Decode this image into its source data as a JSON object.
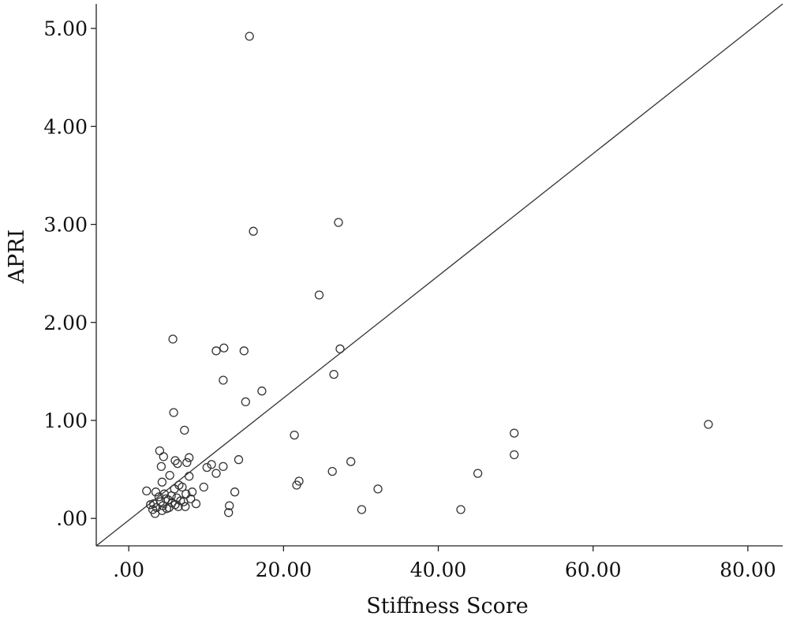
{
  "chart_data": {
    "type": "scatter",
    "xlabel": "Stiffness Score",
    "ylabel": "APRI",
    "xlim": [
      -4.2,
      84.5
    ],
    "ylim": [
      -0.28,
      5.25
    ],
    "x_ticks": [
      0,
      20,
      40,
      60,
      80
    ],
    "x_tick_labels": [
      ".00",
      "20.00",
      "40.00",
      "60.00",
      "80.00"
    ],
    "y_ticks": [
      0,
      1,
      2,
      3,
      4,
      5
    ],
    "y_tick_labels": [
      ".00",
      "1.00",
      "2.00",
      "3.00",
      "4.00",
      "5.00"
    ],
    "grid": false,
    "legend": "none",
    "reference_line": {
      "from": [
        -4.2,
        -0.28
      ],
      "to": [
        84.5,
        5.25
      ]
    },
    "points": [
      [
        15.6,
        4.92
      ],
      [
        27.1,
        3.02
      ],
      [
        16.1,
        2.93
      ],
      [
        24.6,
        2.28
      ],
      [
        5.7,
        1.83
      ],
      [
        11.3,
        1.71
      ],
      [
        12.3,
        1.74
      ],
      [
        14.9,
        1.71
      ],
      [
        27.3,
        1.73
      ],
      [
        26.5,
        1.47
      ],
      [
        12.2,
        1.41
      ],
      [
        17.2,
        1.3
      ],
      [
        15.1,
        1.19
      ],
      [
        5.8,
        1.08
      ],
      [
        7.2,
        0.9
      ],
      [
        21.4,
        0.85
      ],
      [
        49.8,
        0.87
      ],
      [
        74.9,
        0.96
      ],
      [
        49.8,
        0.65
      ],
      [
        4.0,
        0.69
      ],
      [
        4.5,
        0.63
      ],
      [
        7.8,
        0.62
      ],
      [
        6.0,
        0.59
      ],
      [
        7.5,
        0.57
      ],
      [
        6.3,
        0.56
      ],
      [
        4.2,
        0.53
      ],
      [
        10.1,
        0.52
      ],
      [
        10.7,
        0.55
      ],
      [
        12.2,
        0.53
      ],
      [
        14.2,
        0.6
      ],
      [
        28.7,
        0.58
      ],
      [
        11.3,
        0.46
      ],
      [
        26.3,
        0.48
      ],
      [
        45.1,
        0.46
      ],
      [
        5.3,
        0.44
      ],
      [
        7.8,
        0.43
      ],
      [
        4.3,
        0.37
      ],
      [
        21.7,
        0.34
      ],
      [
        22.0,
        0.38
      ],
      [
        9.7,
        0.32
      ],
      [
        32.2,
        0.3
      ],
      [
        2.3,
        0.28
      ],
      [
        13.7,
        0.27
      ],
      [
        3.5,
        0.27
      ],
      [
        5.9,
        0.3
      ],
      [
        6.5,
        0.34
      ],
      [
        8.2,
        0.27
      ],
      [
        6.9,
        0.32
      ],
      [
        4.6,
        0.25
      ],
      [
        5.5,
        0.23
      ],
      [
        7.4,
        0.25
      ],
      [
        3.9,
        0.22
      ],
      [
        4.8,
        0.2
      ],
      [
        6.2,
        0.21
      ],
      [
        8.0,
        0.2
      ],
      [
        5.1,
        0.19
      ],
      [
        6.7,
        0.18
      ],
      [
        4.1,
        0.17
      ],
      [
        5.6,
        0.16
      ],
      [
        7.1,
        0.17
      ],
      [
        3.2,
        0.15
      ],
      [
        2.8,
        0.14
      ],
      [
        4.4,
        0.13
      ],
      [
        6.0,
        0.14
      ],
      [
        8.7,
        0.15
      ],
      [
        13.0,
        0.13
      ],
      [
        3.6,
        0.11
      ],
      [
        5.2,
        0.11
      ],
      [
        6.4,
        0.12
      ],
      [
        7.3,
        0.12
      ],
      [
        4.9,
        0.1
      ],
      [
        3.1,
        0.09
      ],
      [
        4.3,
        0.08
      ],
      [
        30.1,
        0.09
      ],
      [
        42.9,
        0.09
      ],
      [
        3.4,
        0.05
      ],
      [
        12.9,
        0.06
      ]
    ]
  }
}
